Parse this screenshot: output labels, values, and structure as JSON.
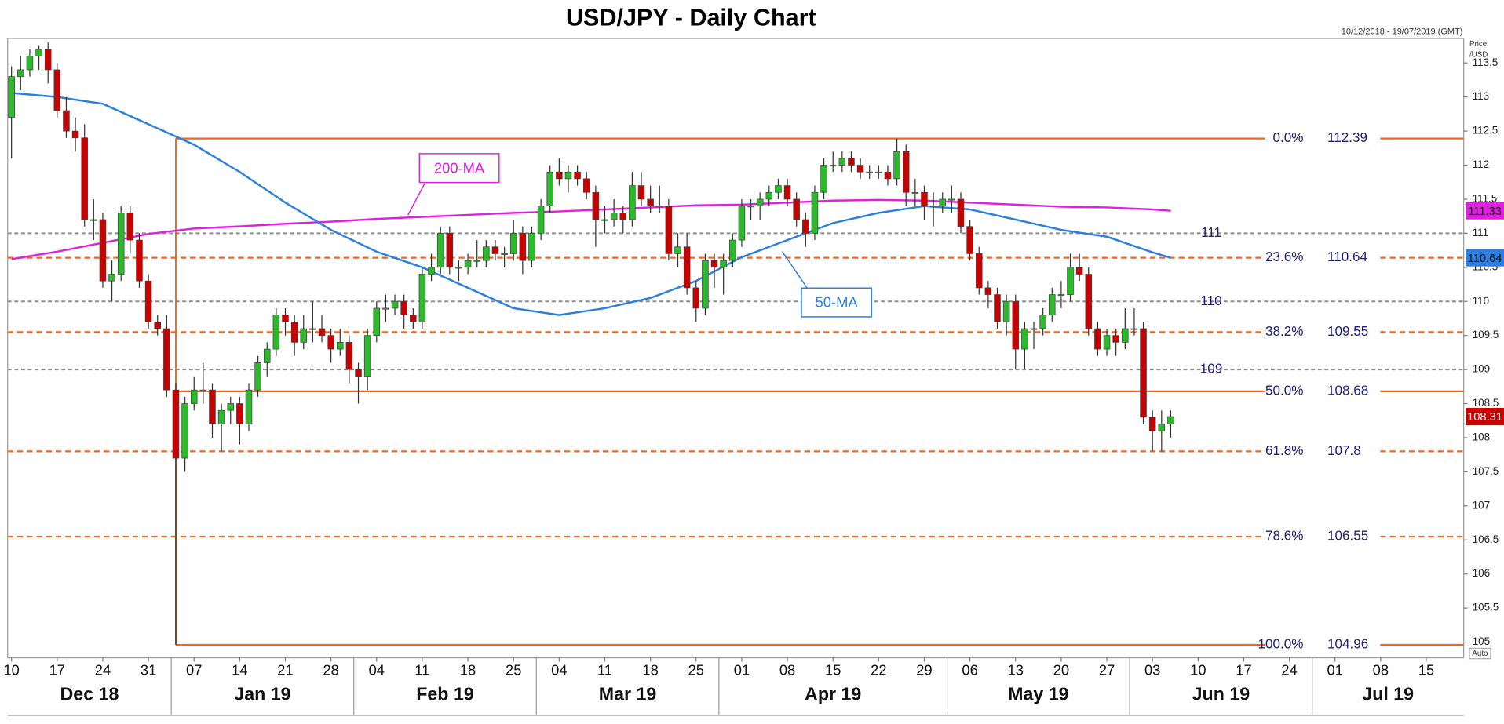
{
  "chart_data": {
    "type": "candlestick",
    "title": "USD/JPY - Daily Chart",
    "subtitle": "10/12/2018 - 19/07/2019 (GMT)",
    "ylabel_lines": [
      "Price",
      "/USD"
    ],
    "scale_mode": "Auto",
    "ylim": [
      104.77,
      113.86
    ],
    "yticks": [
      105,
      105.5,
      106,
      106.5,
      107,
      107.5,
      108,
      108.5,
      109,
      109.5,
      110,
      110.5,
      111,
      111.5,
      112,
      112.5,
      113,
      113.5
    ],
    "xtick_labels": [
      "10",
      "17",
      "24",
      "31",
      "07",
      "14",
      "21",
      "28",
      "04",
      "11",
      "18",
      "25",
      "04",
      "11",
      "18",
      "25",
      "01",
      "08",
      "15",
      "22",
      "29",
      "06",
      "13",
      "20",
      "27",
      "03",
      "10",
      "17",
      "24",
      "01",
      "08",
      "15"
    ],
    "months": [
      "Dec 18",
      "Jan 19",
      "Feb 19",
      "Mar 19",
      "Apr 19",
      "May 19",
      "Jun 19",
      "Jul 19"
    ],
    "up_color": "#2cb92c",
    "down_color": "#c80000",
    "candles": [
      [
        112.7,
        113.45,
        112.1,
        113.3
      ],
      [
        113.3,
        113.6,
        113.1,
        113.4
      ],
      [
        113.4,
        113.7,
        113.3,
        113.6
      ],
      [
        113.6,
        113.75,
        113.4,
        113.7
      ],
      [
        113.7,
        113.8,
        113.2,
        113.4
      ],
      [
        113.4,
        113.5,
        112.7,
        112.8
      ],
      [
        112.8,
        113.0,
        112.4,
        112.5
      ],
      [
        112.5,
        112.7,
        112.2,
        112.4
      ],
      [
        112.4,
        112.6,
        111.1,
        111.2
      ],
      [
        111.2,
        111.5,
        110.9,
        111.2
      ],
      [
        111.2,
        111.3,
        110.2,
        110.3
      ],
      [
        110.3,
        110.6,
        110.0,
        110.4
      ],
      [
        110.4,
        111.4,
        110.3,
        111.3
      ],
      [
        111.3,
        111.4,
        110.7,
        110.9
      ],
      [
        110.9,
        111.0,
        110.2,
        110.3
      ],
      [
        110.3,
        110.4,
        109.6,
        109.7
      ],
      [
        109.7,
        109.8,
        109.5,
        109.6
      ],
      [
        109.6,
        109.8,
        108.6,
        108.7
      ],
      [
        108.7,
        108.8,
        104.96,
        107.7
      ],
      [
        107.7,
        108.6,
        107.5,
        108.5
      ],
      [
        108.5,
        108.9,
        108.4,
        108.7
      ],
      [
        108.7,
        109.1,
        108.5,
        108.7
      ],
      [
        108.7,
        108.8,
        108.0,
        108.2
      ],
      [
        108.2,
        108.5,
        107.8,
        108.4
      ],
      [
        108.4,
        108.6,
        108.2,
        108.5
      ],
      [
        108.5,
        108.6,
        107.9,
        108.2
      ],
      [
        108.2,
        108.8,
        108.1,
        108.7
      ],
      [
        108.7,
        109.2,
        108.6,
        109.1
      ],
      [
        109.1,
        109.4,
        108.9,
        109.3
      ],
      [
        109.3,
        109.9,
        109.2,
        109.8
      ],
      [
        109.8,
        109.9,
        109.5,
        109.7
      ],
      [
        109.7,
        109.8,
        109.2,
        109.4
      ],
      [
        109.4,
        109.8,
        109.3,
        109.6
      ],
      [
        109.6,
        110.0,
        109.4,
        109.6
      ],
      [
        109.6,
        109.8,
        109.4,
        109.5
      ],
      [
        109.5,
        109.6,
        109.1,
        109.3
      ],
      [
        109.3,
        109.6,
        109.2,
        109.4
      ],
      [
        109.4,
        109.5,
        108.8,
        109.0
      ],
      [
        109.0,
        109.1,
        108.5,
        108.9
      ],
      [
        108.9,
        109.6,
        108.7,
        109.5
      ],
      [
        109.5,
        110.0,
        109.4,
        109.9
      ],
      [
        109.9,
        110.1,
        109.7,
        109.9
      ],
      [
        109.9,
        110.1,
        109.8,
        110.0
      ],
      [
        110.0,
        110.1,
        109.6,
        109.8
      ],
      [
        109.8,
        109.9,
        109.6,
        109.7
      ],
      [
        109.7,
        110.5,
        109.6,
        110.4
      ],
      [
        110.4,
        110.7,
        110.3,
        110.5
      ],
      [
        110.5,
        111.1,
        110.4,
        111.0
      ],
      [
        111.0,
        111.1,
        110.4,
        110.5
      ],
      [
        110.5,
        110.6,
        110.3,
        110.5
      ],
      [
        110.5,
        110.7,
        110.4,
        110.6
      ],
      [
        110.6,
        110.9,
        110.5,
        110.6
      ],
      [
        110.6,
        110.9,
        110.5,
        110.8
      ],
      [
        110.8,
        110.9,
        110.6,
        110.7
      ],
      [
        110.7,
        110.8,
        110.5,
        110.7
      ],
      [
        110.7,
        111.2,
        110.6,
        111.0
      ],
      [
        111.0,
        111.1,
        110.4,
        110.6
      ],
      [
        110.6,
        111.1,
        110.5,
        111.0
      ],
      [
        111.0,
        111.5,
        110.9,
        111.4
      ],
      [
        111.4,
        112.0,
        111.3,
        111.9
      ],
      [
        111.9,
        112.1,
        111.7,
        111.8
      ],
      [
        111.8,
        112.0,
        111.6,
        111.9
      ],
      [
        111.9,
        112.0,
        111.7,
        111.8
      ],
      [
        111.8,
        111.9,
        111.5,
        111.6
      ],
      [
        111.6,
        111.7,
        110.8,
        111.2
      ],
      [
        111.2,
        111.4,
        111.0,
        111.2
      ],
      [
        111.2,
        111.5,
        111.1,
        111.3
      ],
      [
        111.3,
        111.4,
        111.0,
        111.2
      ],
      [
        111.2,
        111.9,
        111.1,
        111.7
      ],
      [
        111.7,
        111.9,
        111.4,
        111.5
      ],
      [
        111.5,
        111.7,
        111.3,
        111.4
      ],
      [
        111.4,
        111.7,
        111.3,
        111.4
      ],
      [
        111.4,
        111.5,
        110.6,
        110.7
      ],
      [
        110.7,
        111.0,
        110.5,
        110.8
      ],
      [
        110.8,
        111.0,
        110.1,
        110.2
      ],
      [
        110.2,
        110.3,
        109.7,
        109.9
      ],
      [
        109.9,
        110.7,
        109.8,
        110.6
      ],
      [
        110.6,
        110.7,
        110.2,
        110.5
      ],
      [
        110.5,
        110.7,
        110.1,
        110.6
      ],
      [
        110.6,
        111.0,
        110.5,
        110.9
      ],
      [
        110.9,
        111.5,
        110.8,
        111.4
      ],
      [
        111.4,
        111.5,
        111.2,
        111.4
      ],
      [
        111.4,
        111.6,
        111.2,
        111.5
      ],
      [
        111.5,
        111.7,
        111.4,
        111.6
      ],
      [
        111.6,
        111.8,
        111.5,
        111.7
      ],
      [
        111.7,
        111.8,
        111.4,
        111.5
      ],
      [
        111.5,
        111.6,
        111.1,
        111.2
      ],
      [
        111.2,
        111.3,
        110.8,
        111.0
      ],
      [
        111.0,
        111.7,
        110.9,
        111.6
      ],
      [
        111.6,
        112.1,
        111.5,
        112.0
      ],
      [
        112.0,
        112.2,
        111.9,
        112.0
      ],
      [
        112.0,
        112.2,
        111.9,
        112.1
      ],
      [
        112.1,
        112.2,
        111.9,
        112.0
      ],
      [
        112.0,
        112.1,
        111.8,
        111.9
      ],
      [
        111.9,
        112.0,
        111.8,
        111.9
      ],
      [
        111.9,
        112.0,
        111.8,
        111.9
      ],
      [
        111.9,
        112.0,
        111.7,
        111.8
      ],
      [
        111.8,
        112.39,
        111.7,
        112.2
      ],
      [
        112.2,
        112.3,
        111.4,
        111.6
      ],
      [
        111.6,
        111.8,
        111.4,
        111.6
      ],
      [
        111.6,
        111.7,
        111.2,
        111.4
      ],
      [
        111.4,
        111.6,
        111.1,
        111.4
      ],
      [
        111.4,
        111.6,
        111.3,
        111.5
      ],
      [
        111.5,
        111.7,
        111.3,
        111.5
      ],
      [
        111.5,
        111.6,
        111.0,
        111.1
      ],
      [
        111.1,
        111.2,
        110.6,
        110.7
      ],
      [
        110.7,
        110.8,
        110.1,
        110.2
      ],
      [
        110.2,
        110.3,
        109.9,
        110.1
      ],
      [
        110.1,
        110.2,
        109.6,
        109.7
      ],
      [
        109.7,
        110.1,
        109.5,
        110.0
      ],
      [
        110.0,
        110.1,
        109.0,
        109.3
      ],
      [
        109.3,
        109.7,
        109.0,
        109.6
      ],
      [
        109.6,
        109.7,
        109.3,
        109.6
      ],
      [
        109.6,
        109.9,
        109.5,
        109.8
      ],
      [
        109.8,
        110.2,
        109.7,
        110.1
      ],
      [
        110.1,
        110.3,
        109.9,
        110.1
      ],
      [
        110.1,
        110.7,
        110.0,
        110.5
      ],
      [
        110.5,
        110.7,
        110.3,
        110.4
      ],
      [
        110.4,
        110.5,
        109.5,
        109.6
      ],
      [
        109.6,
        109.7,
        109.2,
        109.3
      ],
      [
        109.3,
        109.6,
        109.2,
        109.5
      ],
      [
        109.5,
        109.6,
        109.2,
        109.4
      ],
      [
        109.4,
        109.9,
        109.3,
        109.6
      ],
      [
        109.6,
        109.9,
        109.5,
        109.6
      ],
      [
        109.6,
        109.7,
        108.2,
        108.3
      ],
      [
        108.3,
        108.4,
        107.8,
        108.1
      ],
      [
        108.1,
        108.4,
        107.8,
        108.2
      ],
      [
        108.2,
        108.4,
        108.0,
        108.31
      ]
    ],
    "series": [
      {
        "name": "200-MA",
        "color": "#e020e0",
        "values": [
          110.62,
          110.73,
          110.86,
          110.99,
          111.07,
          111.1,
          111.14,
          111.17,
          111.21,
          111.24,
          111.27,
          111.3,
          111.32,
          111.35,
          111.38,
          111.41,
          111.42,
          111.45,
          111.48,
          111.49,
          111.48,
          111.45,
          111.42,
          111.39,
          111.38,
          111.35,
          111.33
        ]
      },
      {
        "name": "50-MA",
        "color": "#2a7fe0",
        "values": [
          113.06,
          113.0,
          112.9,
          112.6,
          112.3,
          111.9,
          111.45,
          111.05,
          110.73,
          110.5,
          110.2,
          109.9,
          109.8,
          109.9,
          110.05,
          110.3,
          110.65,
          110.9,
          111.15,
          111.3,
          111.4,
          111.35,
          111.2,
          111.05,
          110.95,
          110.72,
          110.64
        ]
      }
    ],
    "levels_color": "#f26522",
    "levels": [
      {
        "label": "0.0%",
        "value": 112.39,
        "style": "solid"
      },
      {
        "label": "23.6%",
        "value": 110.64,
        "style": "dashed"
      },
      {
        "label": "38.2%",
        "value": 109.55,
        "style": "dashed"
      },
      {
        "label": "50.0%",
        "value": 108.68,
        "style": "solid"
      },
      {
        "label": "61.8%",
        "value": 107.8,
        "style": "dashed"
      },
      {
        "label": "78.6%",
        "value": 106.55,
        "style": "dashed"
      },
      {
        "label": "100.0%",
        "value": 104.96,
        "style": "solid"
      }
    ],
    "reference_color": "#8c8c8c",
    "reference_lines": [
      111,
      110,
      109
    ]
  }
}
